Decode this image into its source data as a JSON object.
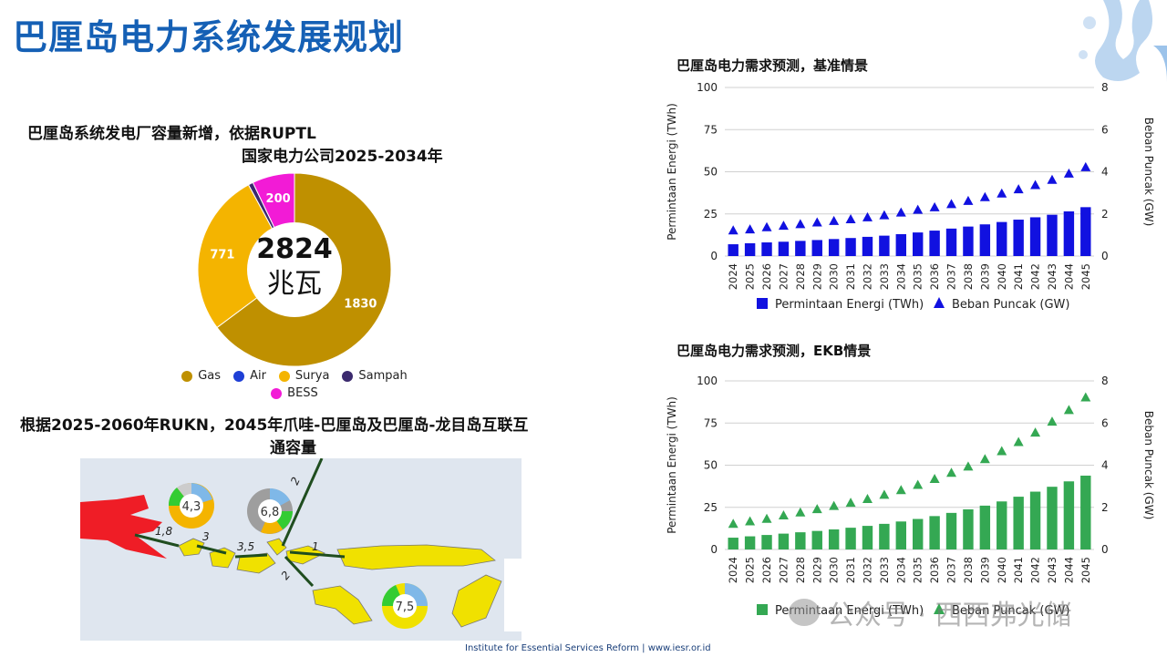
{
  "page": {
    "title": "巴厘岛电力系统发展规划",
    "footer": "Institute for Essential Services Reform | www.iesr.or.id",
    "watermark": "公众号 · 西西弗光储"
  },
  "donut": {
    "title_line1": "巴厘岛系统发电厂容量新增，依据RUPTL",
    "title_line2": "国家电力公司2025-2034年",
    "center_value": "2824",
    "center_unit": "兆瓦",
    "legend": [
      {
        "label": "Gas",
        "color": "#bf9000"
      },
      {
        "label": "Air",
        "color": "#1e3fd6"
      },
      {
        "label": "Surya",
        "color": "#f4b400"
      },
      {
        "label": "Sampah",
        "color": "#3b2a6e"
      },
      {
        "label": "BESS",
        "color": "#f21bd6"
      }
    ]
  },
  "map": {
    "title_line1": "根据2025-2060年RUKN，2045年爪哇-巴厘岛及巴厘岛-龙目岛互联互",
    "title_line2": "通容量",
    "labels": [
      "1,8",
      "3",
      "3,5",
      "2",
      "1",
      "2"
    ],
    "pie_labels": [
      "4,3",
      "6,8",
      "7,5"
    ]
  },
  "chart_data": [
    {
      "type": "pie",
      "title": "巴厘岛系统发电厂容量新增，依据RUPTL 国家电力公司2025-2034年",
      "categories": [
        "Gas",
        "Air",
        "Surya",
        "Sampah",
        "BESS"
      ],
      "values": [
        1830,
        0,
        771,
        23,
        200
      ],
      "colors": [
        "#bf9000",
        "#1e3fd6",
        "#f4b400",
        "#3b2a6e",
        "#f21bd6"
      ],
      "center_text": "2824 兆瓦",
      "legend": "bottom"
    },
    {
      "type": "bar",
      "title": "巴厘岛电力需求预测，基准情景",
      "categories": [
        "2024",
        "2025",
        "2026",
        "2027",
        "2028",
        "2029",
        "2030",
        "2031",
        "2032",
        "2033",
        "2034",
        "2035",
        "2036",
        "2037",
        "2038",
        "2039",
        "2040",
        "2041",
        "2042",
        "2043",
        "2044",
        "2045"
      ],
      "series": [
        {
          "name": "Permintaan Energi (TWh)",
          "type": "bar",
          "axis": "left",
          "color": "#1111e0",
          "values": [
            7.0,
            7.6,
            8.1,
            8.5,
            9.0,
            9.5,
            10.1,
            10.7,
            11.4,
            12.1,
            13.0,
            14.0,
            15.1,
            16.3,
            17.5,
            18.8,
            20.2,
            21.6,
            23.0,
            24.5,
            26.5,
            29.0
          ]
        },
        {
          "name": "Beban Puncak (GW)",
          "type": "scatter",
          "axis": "right",
          "color": "#1111e0",
          "values": [
            1.2,
            1.25,
            1.35,
            1.42,
            1.5,
            1.58,
            1.65,
            1.73,
            1.82,
            1.92,
            2.05,
            2.18,
            2.3,
            2.45,
            2.6,
            2.78,
            2.95,
            3.15,
            3.35,
            3.6,
            3.9,
            4.2
          ]
        }
      ],
      "ylabel": "Permintaan Energi (TWh)",
      "y2label": "Beban Puncak (GW)",
      "ylim": [
        0,
        100
      ],
      "yticks": [
        0,
        25,
        50,
        75,
        100
      ],
      "y2lim": [
        0,
        8
      ],
      "y2ticks": [
        0,
        2,
        4,
        6,
        8
      ],
      "grid": true,
      "legend": "bottom"
    },
    {
      "type": "bar",
      "title": "巴厘岛电力需求预测，EKB情景",
      "categories": [
        "2024",
        "2025",
        "2026",
        "2027",
        "2028",
        "2029",
        "2030",
        "2031",
        "2032",
        "2033",
        "2034",
        "2035",
        "2036",
        "2037",
        "2038",
        "2039",
        "2040",
        "2041",
        "2042",
        "2043",
        "2044",
        "2045"
      ],
      "series": [
        {
          "name": "Permintaan Energi (TWh)",
          "type": "bar",
          "axis": "left",
          "color": "#34a853",
          "values": [
            7.0,
            7.8,
            8.6,
            9.4,
            10.2,
            11.0,
            11.9,
            12.9,
            14.0,
            15.2,
            16.6,
            18.1,
            19.8,
            21.7,
            23.8,
            26.0,
            28.5,
            31.3,
            34.3,
            37.2,
            40.4,
            43.8
          ]
        },
        {
          "name": "Beban Puncak (GW)",
          "type": "scatter",
          "axis": "right",
          "color": "#34a853",
          "values": [
            1.2,
            1.32,
            1.44,
            1.6,
            1.74,
            1.9,
            2.05,
            2.2,
            2.38,
            2.58,
            2.8,
            3.05,
            3.33,
            3.62,
            3.92,
            4.27,
            4.65,
            5.08,
            5.53,
            6.05,
            6.6,
            7.2
          ]
        }
      ],
      "ylabel": "Permintaan Energi (TWh)",
      "y2label": "Beban Puncak (GW)",
      "ylim": [
        0,
        100
      ],
      "yticks": [
        0,
        25,
        50,
        75,
        100
      ],
      "y2lim": [
        0,
        8
      ],
      "y2ticks": [
        0,
        2,
        4,
        6,
        8
      ],
      "grid": true,
      "legend": "bottom"
    }
  ]
}
